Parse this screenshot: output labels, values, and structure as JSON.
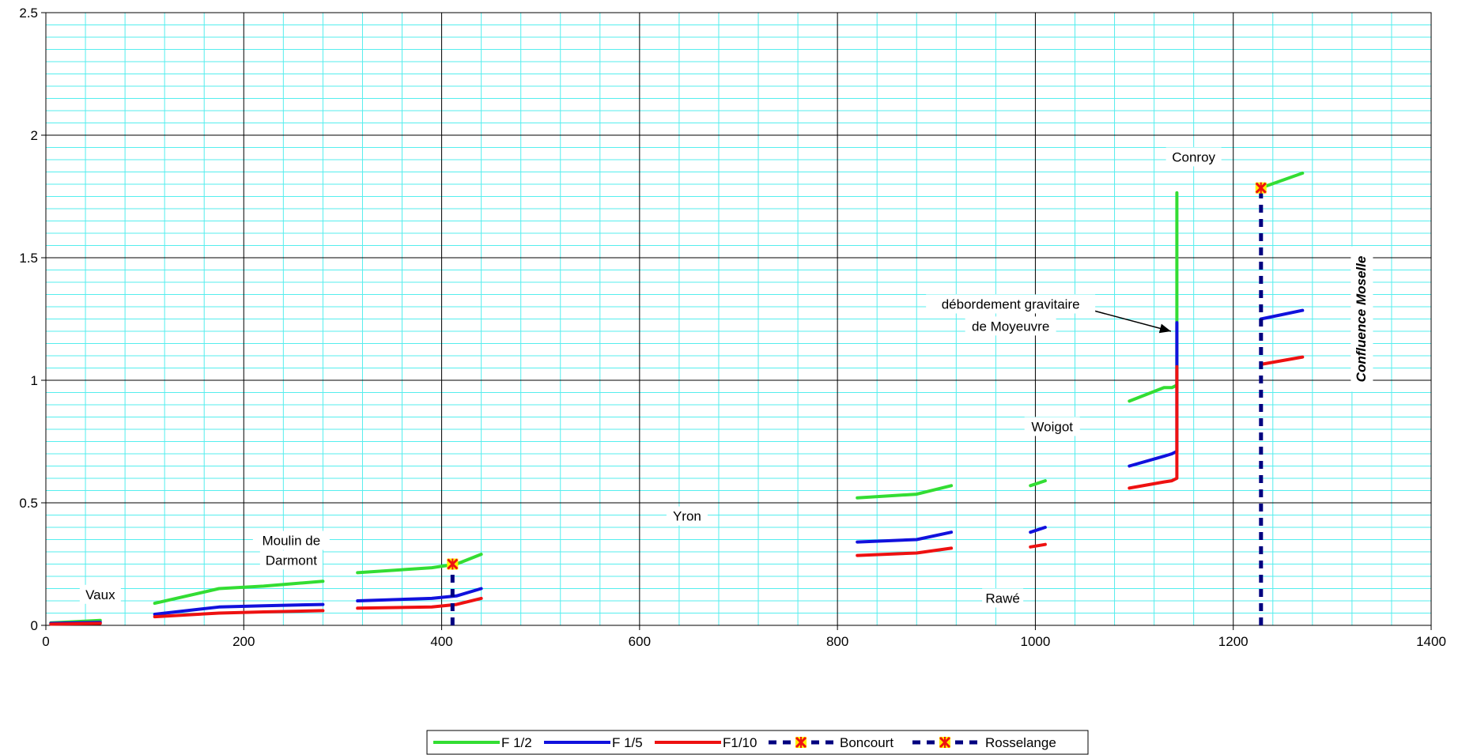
{
  "chart_data": {
    "type": "line",
    "xlim": [
      0,
      1400
    ],
    "ylim": [
      0,
      2.5
    ],
    "x_ticks": [
      "0",
      "200",
      "400",
      "600",
      "800",
      "1000",
      "1200",
      "1400"
    ],
    "y_ticks": [
      "0",
      "0.5",
      "1",
      "1.5",
      "2",
      "2.5"
    ],
    "grid": true,
    "legend_position": "bottom",
    "series": [
      {
        "name": "F 1/2",
        "color": "#33dd33",
        "style": "solid",
        "segments": [
          [
            [
              5,
              0.01
            ],
            [
              55,
              0.02
            ]
          ],
          [
            [
              110,
              0.09
            ],
            [
              175,
              0.15
            ],
            [
              220,
              0.16
            ],
            [
              280,
              0.18
            ]
          ],
          [
            [
              315,
              0.215
            ],
            [
              390,
              0.235
            ],
            [
              415,
              0.25
            ],
            [
              440,
              0.29
            ]
          ],
          [
            [
              820,
              0.52
            ],
            [
              880,
              0.535
            ],
            [
              915,
              0.57
            ]
          ],
          [
            [
              995,
              0.57
            ],
            [
              1010,
              0.59
            ]
          ],
          [
            [
              1095,
              0.915
            ],
            [
              1130,
              0.97
            ],
            [
              1138,
              0.97
            ],
            [
              1143,
              0.98
            ],
            [
              1143,
              1.765
            ]
          ],
          [
            [
              1228,
              1.785
            ],
            [
              1270,
              1.845
            ]
          ]
        ]
      },
      {
        "name": "F 1/5",
        "color": "#1111dd",
        "style": "solid",
        "segments": [
          [
            [
              5,
              0.008
            ],
            [
              55,
              0.012
            ]
          ],
          [
            [
              110,
              0.045
            ],
            [
              175,
              0.075
            ],
            [
              220,
              0.08
            ],
            [
              280,
              0.085
            ]
          ],
          [
            [
              315,
              0.1
            ],
            [
              390,
              0.11
            ],
            [
              415,
              0.12
            ],
            [
              440,
              0.15
            ]
          ],
          [
            [
              820,
              0.34
            ],
            [
              880,
              0.35
            ],
            [
              915,
              0.38
            ]
          ],
          [
            [
              995,
              0.38
            ],
            [
              1010,
              0.4
            ]
          ],
          [
            [
              1095,
              0.65
            ],
            [
              1130,
              0.69
            ],
            [
              1138,
              0.7
            ],
            [
              1143,
              0.71
            ],
            [
              1143,
              1.235
            ]
          ],
          [
            [
              1228,
              1.25
            ],
            [
              1270,
              1.285
            ]
          ]
        ]
      },
      {
        "name": "F1/10",
        "color": "#ee1111",
        "style": "solid",
        "segments": [
          [
            [
              5,
              0.005
            ],
            [
              55,
              0.008
            ]
          ],
          [
            [
              110,
              0.035
            ],
            [
              175,
              0.05
            ],
            [
              220,
              0.055
            ],
            [
              280,
              0.06
            ]
          ],
          [
            [
              315,
              0.07
            ],
            [
              390,
              0.075
            ],
            [
              415,
              0.085
            ],
            [
              440,
              0.11
            ]
          ],
          [
            [
              820,
              0.285
            ],
            [
              880,
              0.295
            ],
            [
              915,
              0.315
            ]
          ],
          [
            [
              995,
              0.32
            ],
            [
              1010,
              0.33
            ]
          ],
          [
            [
              1095,
              0.56
            ],
            [
              1130,
              0.585
            ],
            [
              1138,
              0.59
            ],
            [
              1143,
              0.6
            ],
            [
              1143,
              1.055
            ]
          ],
          [
            [
              1228,
              1.065
            ],
            [
              1270,
              1.095
            ]
          ]
        ]
      },
      {
        "name": "Boncourt",
        "color": "#000080",
        "style": "dashed",
        "marker_x": 411,
        "marker_y": 0.25,
        "line": [
          [
            411,
            0
          ],
          [
            411,
            0.25
          ]
        ]
      },
      {
        "name": "Rosselange",
        "color": "#000080",
        "style": "dashed",
        "marker_x": 1228,
        "marker_y": 1.785,
        "line": [
          [
            1228,
            0
          ],
          [
            1228,
            1.785
          ]
        ]
      }
    ],
    "annotations": [
      {
        "id": "vaux",
        "text": "Vaux",
        "x": 55,
        "y": 0.12
      },
      {
        "id": "moulin1",
        "text": "Moulin de",
        "x": 248,
        "y": 0.34
      },
      {
        "id": "moulin2",
        "text": "Darmont",
        "x": 248,
        "y": 0.26
      },
      {
        "id": "yron",
        "text": "Yron",
        "x": 648,
        "y": 0.44
      },
      {
        "id": "rawe",
        "text": "Rawé",
        "x": 967,
        "y": 0.105,
        "yv": 0.605
      },
      {
        "id": "woigot",
        "text": "Woigot",
        "x": 1017,
        "y": 0.805
      },
      {
        "id": "conroy",
        "text": "Conroy",
        "x": 1160,
        "y": 1.905
      },
      {
        "id": "deb1",
        "text": "débordement gravitaire",
        "x": 975,
        "y": 1.305
      },
      {
        "id": "deb2",
        "text": "de Moyeuvre",
        "x": 975,
        "y": 1.215
      },
      {
        "id": "confluence",
        "text": "Confluence Moselle",
        "x": 1330,
        "y": 1.25
      }
    ]
  }
}
